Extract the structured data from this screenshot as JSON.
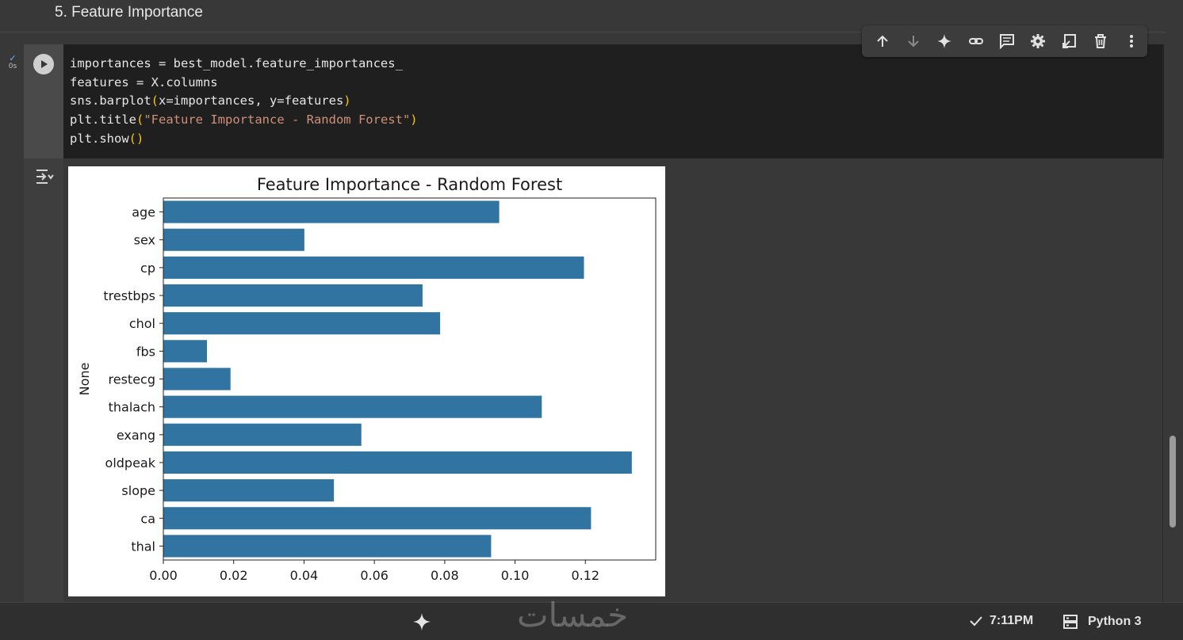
{
  "section": {
    "heading": "5. Feature Importance"
  },
  "cell": {
    "exec_time": "0s",
    "code_lines": [
      [
        {
          "t": "importances = best_model.feature_importances_",
          "c": ""
        }
      ],
      [
        {
          "t": "features = X.columns",
          "c": ""
        }
      ],
      [
        {
          "t": "sns.barplot",
          "c": ""
        },
        {
          "t": "(",
          "c": "tok-paren"
        },
        {
          "t": "x=importances, y=features",
          "c": ""
        },
        {
          "t": ")",
          "c": "tok-paren"
        }
      ],
      [
        {
          "t": "plt.title",
          "c": ""
        },
        {
          "t": "(",
          "c": "tok-paren"
        },
        {
          "t": "\"Feature Importance - Random Forest\"",
          "c": "tok-str"
        },
        {
          "t": ")",
          "c": "tok-paren"
        }
      ],
      [
        {
          "t": "plt.show",
          "c": ""
        },
        {
          "t": "()",
          "c": "tok-paren"
        }
      ]
    ],
    "toolbar_icons": [
      "arrow-up-icon",
      "arrow-down-icon",
      "sparkle-icon",
      "link-icon",
      "comment-icon",
      "gear-icon",
      "mirror-cell-icon",
      "trash-icon",
      "more-vert-icon"
    ]
  },
  "chart_data": {
    "type": "bar",
    "orientation": "horizontal",
    "title": "Feature Importance - Random Forest",
    "xlabel": "",
    "ylabel": "None",
    "categories": [
      "age",
      "sex",
      "cp",
      "trestbps",
      "chol",
      "fbs",
      "restecg",
      "thalach",
      "exang",
      "oldpeak",
      "slope",
      "ca",
      "thal"
    ],
    "values": [
      0.0955,
      0.0401,
      0.1196,
      0.0737,
      0.0787,
      0.0124,
      0.0191,
      0.1076,
      0.0563,
      0.1332,
      0.0485,
      0.1216,
      0.0932
    ],
    "xlim": [
      0.0,
      0.14
    ],
    "xticks": [
      "0.00",
      "0.02",
      "0.04",
      "0.06",
      "0.08",
      "0.10",
      "0.12"
    ],
    "bar_color": "#3274a1",
    "grid": false
  },
  "statusbar": {
    "time": "7:11PM",
    "runtime": "Python 3",
    "watermark": "خمسات"
  }
}
